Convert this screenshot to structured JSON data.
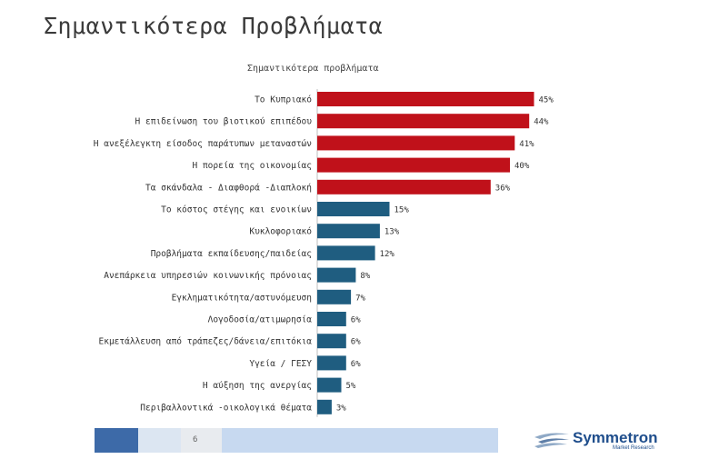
{
  "slide": {
    "title": "Σημαντικότερα Προβλήματα",
    "page_number": "6"
  },
  "logo": {
    "name": "Symmetron",
    "subtitle": "Market Research"
  },
  "colors": {
    "top_group": "#c0111a",
    "other_group": "#1f5d80"
  },
  "chart_data": {
    "type": "bar",
    "orientation": "horizontal",
    "title": "Σημαντικότερα προβλήματα",
    "categories": [
      "Το Κυπριακό",
      "Η επιδείνωση του βιοτικού επιπέδου",
      "Η ανεξέλεγκτη είσοδος παράτυπων μεταναστών",
      "Η πορεία της οικονομίας",
      "Τα σκάνδαλα - Διαφθορά -Διαπλοκή",
      "Το κόστος στέγης και ενοικίων",
      "Κυκλοφοριακό",
      "Προβλήματα εκπαίδευσης/παιδείας",
      "Ανεπάρκεια υπηρεσιών κοινωνικής πρόνοιας",
      "Εγκληματικότητα/αστυνόμευση",
      "Λογοδοσία/ατιμωρησία",
      "Εκμετάλλευση από τράπεζες/δάνεια/επιτόκια",
      "Υγεία / ΓΕΣΥ",
      "Η αύξηση της ανεργίας",
      "Περιβαλλοντικά -οικολογικά θέματα"
    ],
    "values": [
      45,
      44,
      41,
      40,
      36,
      15,
      13,
      12,
      8,
      7,
      6,
      6,
      6,
      5,
      3
    ],
    "data_labels": [
      "45%",
      "44%",
      "41%",
      "40%",
      "36%",
      "15%",
      "13%",
      "12%",
      "8%",
      "7%",
      "6%",
      "6%",
      "6%",
      "5%",
      "3%"
    ],
    "top_group_count": 5,
    "grid": false
  }
}
